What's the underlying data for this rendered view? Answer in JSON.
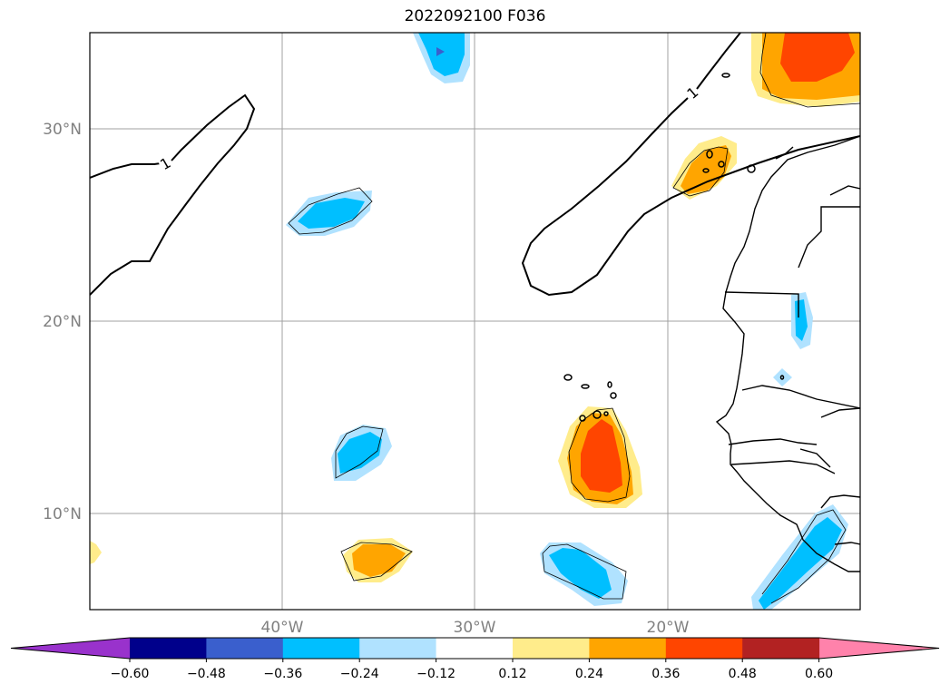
{
  "title": "2022092100 F036",
  "map": {
    "latitude_labels": [
      "30°N",
      "20°N",
      "10°N"
    ],
    "longitude_labels": [
      "40°W",
      "30°W",
      "20°W"
    ],
    "contour_label": "1",
    "grid": true
  },
  "colorbar": {
    "ticks": [
      "−0.60",
      "−0.48",
      "−0.36",
      "−0.24",
      "−0.12",
      "0.12",
      "0.24",
      "0.36",
      "0.48",
      "0.60"
    ],
    "colors": [
      "#9932cc",
      "#00008b",
      "#3a5fcd",
      "#00bfff",
      "#b0e2ff",
      "#ffffff",
      "#ffec8b",
      "#ffa500",
      "#ff4500",
      "#b22222",
      "#ff82ab"
    ],
    "extend": "both"
  }
}
